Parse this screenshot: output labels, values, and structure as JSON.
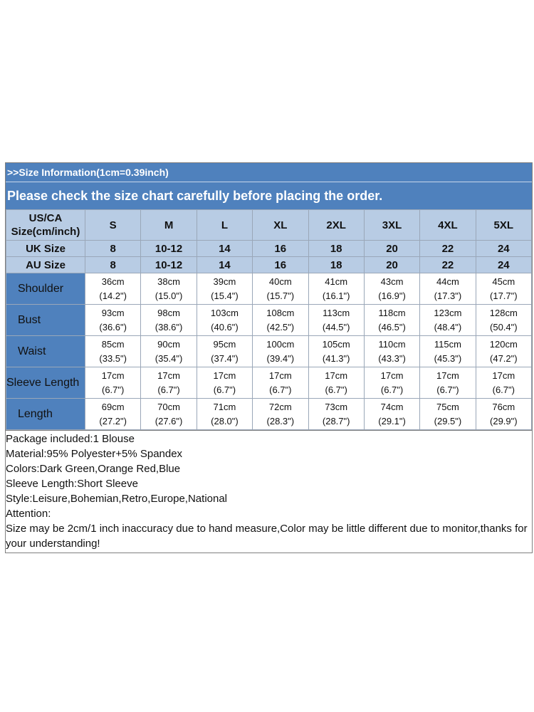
{
  "banner": {
    "line1": ">>Size Information(1cm=0.39inch)",
    "line2": "Please check the size chart carefully before placing the order."
  },
  "size_rows": [
    {
      "label": "US/CA Size(cm/inch)",
      "values": [
        "S",
        "M",
        "L",
        "XL",
        "2XL",
        "3XL",
        "4XL",
        "5XL"
      ]
    },
    {
      "label": "UK Size",
      "values": [
        "8",
        "10-12",
        "14",
        "16",
        "18",
        "20",
        "22",
        "24"
      ]
    },
    {
      "label": "AU Size",
      "values": [
        "8",
        "10-12",
        "14",
        "16",
        "18",
        "20",
        "22",
        "24"
      ]
    }
  ],
  "measurements": [
    {
      "label": "Shoulder",
      "cm": [
        "36cm",
        "38cm",
        "39cm",
        "40cm",
        "41cm",
        "43cm",
        "44cm",
        "45cm"
      ],
      "inch": [
        "(14.2\")",
        "(15.0\")",
        "(15.4\")",
        "(15.7\")",
        "(16.1\")",
        "(16.9\")",
        "(17.3\")",
        "(17.7\")"
      ]
    },
    {
      "label": "Bust",
      "cm": [
        "93cm",
        "98cm",
        "103cm",
        "108cm",
        "113cm",
        "118cm",
        "123cm",
        "128cm"
      ],
      "inch": [
        "(36.6\")",
        "(38.6\")",
        "(40.6\")",
        "(42.5\")",
        "(44.5\")",
        "(46.5\")",
        "(48.4\")",
        "(50.4\")"
      ]
    },
    {
      "label": "Waist",
      "cm": [
        "85cm",
        "90cm",
        "95cm",
        "100cm",
        "105cm",
        "110cm",
        "115cm",
        "120cm"
      ],
      "inch": [
        "(33.5\")",
        "(35.4\")",
        "(37.4\")",
        "(39.4\")",
        "(41.3\")",
        "(43.3\")",
        "(45.3\")",
        "(47.2\")"
      ]
    },
    {
      "label": "Sleeve Length",
      "cm": [
        "17cm",
        "17cm",
        "17cm",
        "17cm",
        "17cm",
        "17cm",
        "17cm",
        "17cm"
      ],
      "inch": [
        "(6.7\")",
        "(6.7\")",
        "(6.7\")",
        "(6.7\")",
        "(6.7\")",
        "(6.7\")",
        "(6.7\")",
        "(6.7\")"
      ]
    },
    {
      "label": "Length",
      "cm": [
        "69cm",
        "70cm",
        "71cm",
        "72cm",
        "73cm",
        "74cm",
        "75cm",
        "76cm"
      ],
      "inch": [
        "(27.2\")",
        "(27.6\")",
        "(28.0\")",
        "(28.3\")",
        "(28.7\")",
        "(29.1\")",
        "(29.5\")",
        "(29.9\")"
      ]
    }
  ],
  "notes": {
    "package": "Package included:1 Blouse",
    "material": "Material:95% Polyester+5% Spandex",
    "colors": "Colors:Dark Green,Orange Red,Blue",
    "sleeve": "Sleeve Length:Short Sleeve",
    "style": "Style:Leisure,Bohemian,Retro,Europe,National",
    "attention": "Attention:",
    "disclaimer": "Size may be 2cm/1 inch inaccuracy due to hand measure,Color may be little different due to monitor,thanks for your understanding!"
  },
  "colors": {
    "banner_blue": "#4f81bd",
    "header_light_blue": "#b8cce4"
  }
}
